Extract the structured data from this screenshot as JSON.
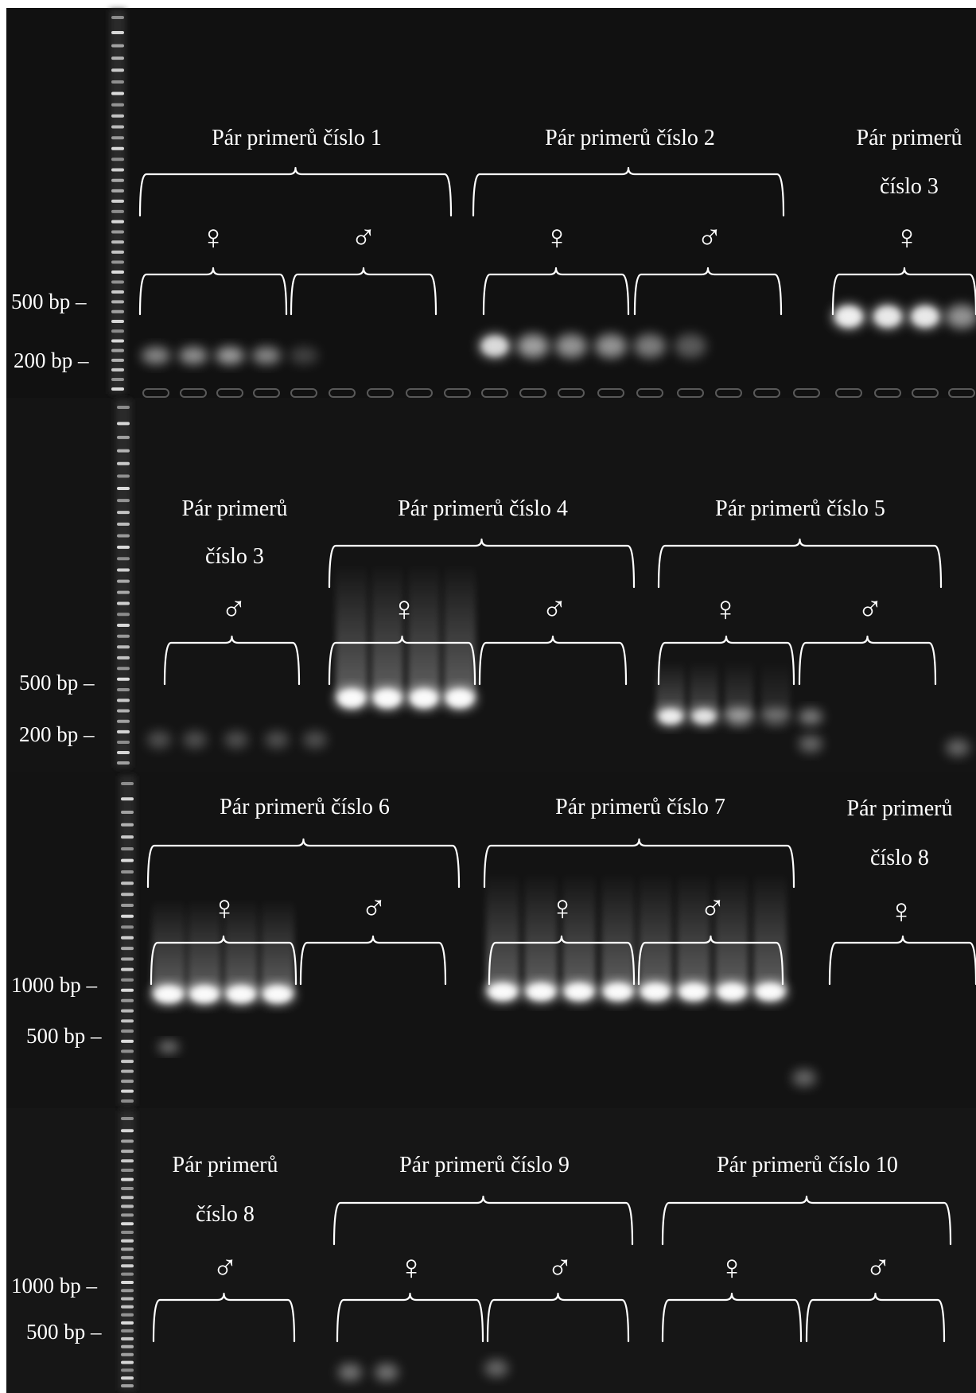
{
  "panels": [
    {
      "markers": [
        "500 bp –",
        "200 bp –"
      ],
      "groups": [
        {
          "title": [
            "Pár primerů číslo 1"
          ],
          "sexes": [
            "♀",
            "♂"
          ]
        },
        {
          "title": [
            "Pár primerů číslo 2"
          ],
          "sexes": [
            "♀",
            "♂"
          ]
        },
        {
          "title": [
            "Pár primerů",
            "číslo 3"
          ],
          "sexes": [
            "♀"
          ]
        }
      ]
    },
    {
      "markers": [
        "500 bp –",
        "200 bp –"
      ],
      "groups": [
        {
          "title": [
            "Pár primerů",
            "číslo 3"
          ],
          "sexes": [
            "♂"
          ]
        },
        {
          "title": [
            "Pár primerů číslo 4"
          ],
          "sexes": [
            "♀",
            "♂"
          ]
        },
        {
          "title": [
            "Pár primerů číslo 5"
          ],
          "sexes": [
            "♀",
            "♂"
          ]
        }
      ]
    },
    {
      "markers": [
        "1000 bp –",
        "500 bp –"
      ],
      "groups": [
        {
          "title": [
            "Pár primerů číslo 6"
          ],
          "sexes": [
            "♀",
            "♂"
          ]
        },
        {
          "title": [
            "Pár primerů číslo 7"
          ],
          "sexes": [
            "♀",
            "♂"
          ]
        },
        {
          "title": [
            "Pár primerů",
            "číslo 8"
          ],
          "sexes": [
            "♀"
          ]
        }
      ]
    },
    {
      "markers": [
        "1000 bp –",
        "500 bp –"
      ],
      "groups": [
        {
          "title": [
            "Pár primerů",
            "číslo 8"
          ],
          "sexes": [
            "♂"
          ]
        },
        {
          "title": [
            "Pár primerů číslo 9"
          ],
          "sexes": [
            "♀",
            "♂"
          ]
        },
        {
          "title": [
            "Pár primerů číslo 10"
          ],
          "sexes": [
            "♀",
            "♂"
          ]
        }
      ]
    }
  ]
}
